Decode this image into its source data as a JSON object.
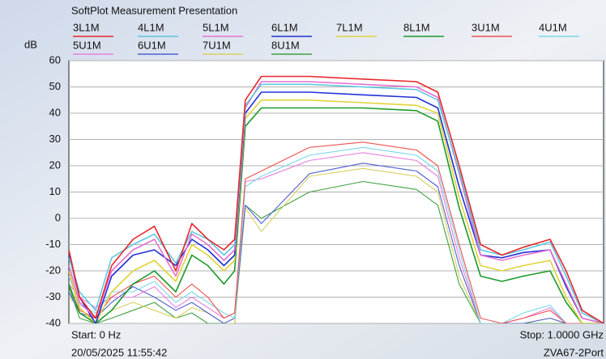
{
  "chart_data": {
    "type": "line",
    "title": "SoftPlot Measurement Presentation",
    "y_label": "dB",
    "start_label": "Start: 0 Hz",
    "stop_label": "Stop: 1.0000 GHz",
    "timestamp": "20/05/2025 11:55:42",
    "instrument": "ZVA67-2Port",
    "xlim": [
      0,
      1
    ],
    "ylim": [
      -40,
      60
    ],
    "yticks": [
      -40,
      -30,
      -20,
      -10,
      0,
      10,
      20,
      30,
      40,
      50,
      60
    ],
    "grid": true,
    "x": [
      0,
      0.02,
      0.05,
      0.08,
      0.12,
      0.16,
      0.2,
      0.23,
      0.26,
      0.29,
      0.31,
      0.33,
      0.36,
      0.45,
      0.55,
      0.65,
      0.69,
      0.73,
      0.77,
      0.81,
      0.85,
      0.9,
      0.93,
      0.96,
      1
    ],
    "series": [
      {
        "name": "3L1M",
        "color": "#e8262b",
        "values": [
          -12,
          -30,
          -38,
          -18,
          -8,
          -3,
          -20,
          -2,
          -8,
          -12,
          -8,
          45,
          54,
          54,
          53,
          52,
          48,
          20,
          -10,
          -14,
          -11,
          -8,
          -20,
          -35,
          -40
        ]
      },
      {
        "name": "4L1M",
        "color": "#5bc8e0",
        "values": [
          -15,
          -28,
          -35,
          -15,
          -10,
          -6,
          -17,
          -5,
          -8,
          -14,
          -10,
          43,
          51,
          51,
          50,
          49,
          45,
          18,
          -12,
          -14,
          -12,
          -9,
          -22,
          -36,
          -40
        ]
      },
      {
        "name": "5L1M",
        "color": "#e76fd0",
        "values": [
          -18,
          -32,
          -38,
          -20,
          -12,
          -8,
          -22,
          -6,
          -10,
          -16,
          -12,
          42,
          52,
          52,
          51,
          50,
          46,
          17,
          -14,
          -16,
          -14,
          -12,
          -25,
          -38,
          -40
        ]
      },
      {
        "name": "6L1M",
        "color": "#2130d8",
        "values": [
          -14,
          -30,
          -40,
          -22,
          -14,
          -12,
          -18,
          -8,
          -12,
          -18,
          -14,
          40,
          48,
          48,
          47,
          46,
          42,
          12,
          -14,
          -15,
          -13,
          -12,
          -26,
          -38,
          -40
        ]
      },
      {
        "name": "7L1M",
        "color": "#e0d33a",
        "values": [
          -20,
          -34,
          -40,
          -28,
          -20,
          -16,
          -24,
          -10,
          -14,
          -20,
          -16,
          38,
          45,
          45,
          44,
          43,
          40,
          8,
          -18,
          -20,
          -18,
          -16,
          -30,
          -40,
          -40
        ]
      },
      {
        "name": "8L1M",
        "color": "#1a9a2a",
        "values": [
          -25,
          -36,
          -40,
          -35,
          -25,
          -20,
          -28,
          -14,
          -18,
          -25,
          -20,
          35,
          42,
          42,
          42,
          41,
          37,
          4,
          -22,
          -24,
          -22,
          -20,
          -32,
          -40,
          -40
        ]
      },
      {
        "name": "3U1M",
        "color": "#f05050",
        "values": [
          -20,
          -35,
          -38,
          -30,
          -25,
          -22,
          -30,
          -25,
          -30,
          -38,
          -36,
          15,
          18,
          27,
          29,
          26,
          20,
          -10,
          -38,
          -40,
          -38,
          -35,
          -40,
          -40,
          -40
        ]
      },
      {
        "name": "4U1M",
        "color": "#7ad8e8",
        "values": [
          -22,
          -33,
          -36,
          -28,
          -28,
          -24,
          -32,
          -28,
          -32,
          -36,
          -38,
          12,
          16,
          24,
          27,
          24,
          18,
          -12,
          -40,
          -40,
          -36,
          -33,
          -40,
          -40,
          -40
        ]
      },
      {
        "name": "5U1M",
        "color": "#e880e0",
        "values": [
          -25,
          -30,
          -34,
          -30,
          -30,
          -26,
          -34,
          -30,
          -34,
          -38,
          -36,
          14,
          15,
          22,
          25,
          22,
          16,
          -15,
          -40,
          -40,
          -38,
          -34,
          -40,
          -40,
          -40
        ]
      },
      {
        "name": "6U1M",
        "color": "#5060d0",
        "values": [
          -28,
          -36,
          -38,
          -32,
          -26,
          -30,
          -35,
          -32,
          -36,
          -40,
          -38,
          5,
          -2,
          17,
          21,
          18,
          12,
          -18,
          -40,
          -40,
          -40,
          -38,
          -40,
          -40,
          -40
        ]
      },
      {
        "name": "7U1M",
        "color": "#d8d060",
        "values": [
          -30,
          -34,
          -40,
          -35,
          -32,
          -35,
          -38,
          -34,
          -36,
          -40,
          -40,
          4,
          -5,
          16,
          19,
          16,
          10,
          -22,
          -40,
          -40,
          -40,
          -38,
          -40,
          -40,
          -40
        ]
      },
      {
        "name": "8U1M",
        "color": "#40a040",
        "values": [
          -26,
          -38,
          -40,
          -38,
          -35,
          -32,
          -38,
          -36,
          -40,
          -40,
          -40,
          5,
          0,
          10,
          14,
          11,
          5,
          -25,
          -40,
          -40,
          -40,
          -40,
          -40,
          -40,
          -40
        ]
      }
    ]
  }
}
